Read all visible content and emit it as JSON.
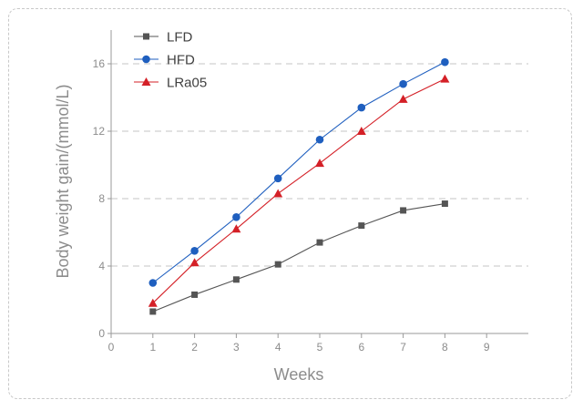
{
  "chart_data": {
    "type": "line",
    "xlabel": "Weeks",
    "ylabel": "Body weight gain/(mmol/L)",
    "xlim": [
      0,
      10
    ],
    "ylim": [
      0,
      18
    ],
    "x_ticks": [
      "0",
      "1",
      "2",
      "3",
      "4",
      "5",
      "6",
      "7",
      "8",
      "9"
    ],
    "y_ticks": [
      "0",
      "4",
      "8",
      "12",
      "16"
    ],
    "grid": "horizontal dashed",
    "legend_position": "top-left",
    "x": [
      1,
      2,
      3,
      4,
      5,
      6,
      7,
      8
    ],
    "series": [
      {
        "name": "LFD",
        "marker": "square",
        "color": "#555555",
        "values": [
          1.3,
          2.3,
          3.2,
          4.1,
          5.4,
          6.4,
          7.3,
          7.7
        ]
      },
      {
        "name": "HFD",
        "marker": "circle",
        "color": "#1f5fbf",
        "values": [
          3.0,
          4.9,
          6.9,
          9.2,
          11.5,
          13.4,
          14.8,
          16.1
        ]
      },
      {
        "name": "LRa05",
        "marker": "triangle",
        "color": "#d42027",
        "values": [
          1.8,
          4.2,
          6.2,
          8.3,
          10.1,
          12.0,
          13.9,
          15.1
        ]
      }
    ]
  }
}
